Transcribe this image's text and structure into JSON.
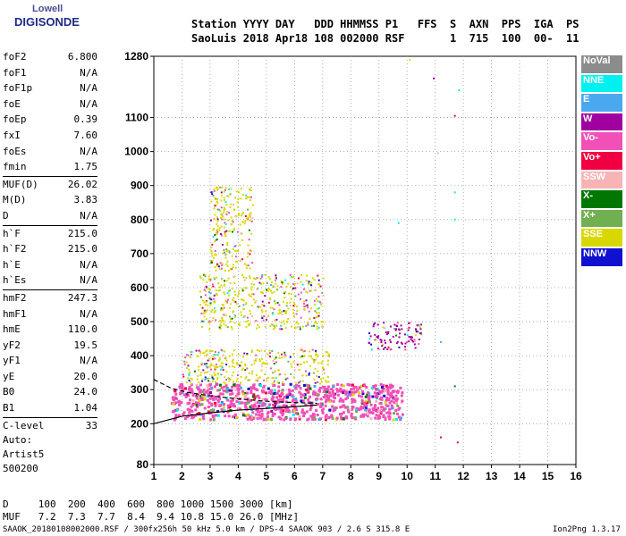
{
  "logo": {
    "line1": "Lowell",
    "line2": "DIGISONDE"
  },
  "header": {
    "line1": "Station YYYY DAY   DDD HHMMSS P1   FFS  S  AXN  PPS  IGA  PS",
    "line2": "SaoLuis 2018 Apr18 108 002000 RSF       1  715  100  00-  11"
  },
  "params": [
    {
      "name": "foF2",
      "value": "6.800"
    },
    {
      "name": "foF1",
      "value": "N/A"
    },
    {
      "name": "foF1p",
      "value": "N/A"
    },
    {
      "name": "foE",
      "value": "N/A"
    },
    {
      "name": "foEp",
      "value": "0.39"
    },
    {
      "name": "fxI",
      "value": "7.60"
    },
    {
      "name": "foEs",
      "value": "N/A"
    },
    {
      "name": "fmin",
      "value": "1.75"
    },
    {
      "name": "MUF(D)",
      "value": "26.02",
      "sep": true
    },
    {
      "name": "M(D)",
      "value": "3.83"
    },
    {
      "name": "D",
      "value": "N/A"
    },
    {
      "name": "h`F",
      "value": "215.0",
      "sep": true
    },
    {
      "name": "h`F2",
      "value": "215.0"
    },
    {
      "name": "h`E",
      "value": "N/A"
    },
    {
      "name": "h`Es",
      "value": "N/A"
    },
    {
      "name": "hmF2",
      "value": "247.3",
      "sep": true
    },
    {
      "name": "hmF1",
      "value": "N/A"
    },
    {
      "name": "hmE",
      "value": "110.0"
    },
    {
      "name": "yF2",
      "value": "19.5"
    },
    {
      "name": "yF1",
      "value": "N/A"
    },
    {
      "name": "yE",
      "value": "20.0"
    },
    {
      "name": "B0",
      "value": "24.0"
    },
    {
      "name": "B1",
      "value": "1.04"
    },
    {
      "name": "C-level",
      "value": "33",
      "sep": true
    }
  ],
  "auto": {
    "line1": "Auto:",
    "line2": "Artist5",
    "line3": "500200"
  },
  "legend": [
    {
      "label": "NoVal",
      "color": "#8c8c8c"
    },
    {
      "label": "NNE",
      "color": "#00f0f0"
    },
    {
      "label": "E",
      "color": "#4aa8ef"
    },
    {
      "label": "W",
      "color": "#a000a0"
    },
    {
      "label": "Vo-",
      "color": "#f050b8"
    },
    {
      "label": "Vo+",
      "color": "#f00040"
    },
    {
      "label": "SSW",
      "color": "#f8b4b4"
    },
    {
      "label": "X-",
      "color": "#007800"
    },
    {
      "label": "X+",
      "color": "#70b050"
    },
    {
      "label": "SSE",
      "color": "#d8d800"
    },
    {
      "label": "NNW",
      "color": "#1010d0"
    }
  ],
  "bottom": {
    "d_row": "D     100  200  400  600  800 1000 1500 3000 [km]",
    "muf_row": "MUF   7.2  7.3  7.7  8.4  9.4 10.8 15.0 26.0 [MHz]"
  },
  "footer": {
    "left": "SAAOK_20180108002000.RSF / 300fx256h 50 kHz 5.0 km / DPS-4 SAAOK 903 / 2.6 S 315.8 E",
    "right": "Ion2Png 1.3.17"
  },
  "chart_data": {
    "type": "scatter",
    "xlim": [
      1,
      16
    ],
    "ylim": [
      80,
      1280
    ],
    "x_ticks": [
      1,
      2,
      3,
      4,
      5,
      6,
      7,
      8,
      9,
      10,
      11,
      12,
      13,
      14,
      15,
      16
    ],
    "y_ticks": [
      80,
      200,
      300,
      400,
      500,
      600,
      700,
      800,
      900,
      1000,
      1100,
      1280
    ],
    "grid": true,
    "profile_solid": {
      "x": [
        1.0,
        2.0,
        3.0,
        4.0,
        5.0,
        6.0,
        6.8
      ],
      "y": [
        200,
        222,
        232,
        240,
        245,
        250,
        255
      ]
    },
    "profile_dashed": {
      "x": [
        1.0,
        1.6,
        2.2,
        3.0,
        4.0,
        5.0,
        6.0,
        6.8
      ],
      "y": [
        330,
        305,
        292,
        282,
        273,
        266,
        262,
        260
      ]
    },
    "trace_regions": [
      {
        "series": "Vo-",
        "x": [
          1.6,
          9.8
        ],
        "y": [
          215,
          320
        ]
      },
      {
        "series": "SSE",
        "x": [
          2.0,
          7.2
        ],
        "y": [
          320,
          420
        ]
      },
      {
        "series": "SSE",
        "x": [
          2.6,
          7.0
        ],
        "y": [
          480,
          640
        ]
      },
      {
        "series": "W",
        "x": [
          8.5,
          10.5
        ],
        "y": [
          420,
          500
        ]
      },
      {
        "series": "SSE",
        "x": [
          3.0,
          4.5
        ],
        "y": [
          650,
          900
        ]
      }
    ],
    "isolated_points": [
      {
        "series": "W",
        "x": 10.95,
        "y": 1215
      },
      {
        "series": "NNE",
        "x": 11.85,
        "y": 1180
      },
      {
        "series": "Vo+",
        "x": 11.7,
        "y": 1105
      },
      {
        "series": "SSW",
        "x": 11.1,
        "y": 995
      },
      {
        "series": "NNE",
        "x": 11.7,
        "y": 880
      },
      {
        "series": "NNE",
        "x": 11.7,
        "y": 800
      },
      {
        "series": "NNE",
        "x": 9.7,
        "y": 790
      },
      {
        "series": "E",
        "x": 11.2,
        "y": 440
      },
      {
        "series": "X-",
        "x": 11.7,
        "y": 310
      },
      {
        "series": "Vo+",
        "x": 11.2,
        "y": 160
      },
      {
        "series": "Vo+",
        "x": 11.8,
        "y": 145
      },
      {
        "series": "SSE",
        "x": 10.1,
        "y": 1270
      }
    ]
  }
}
